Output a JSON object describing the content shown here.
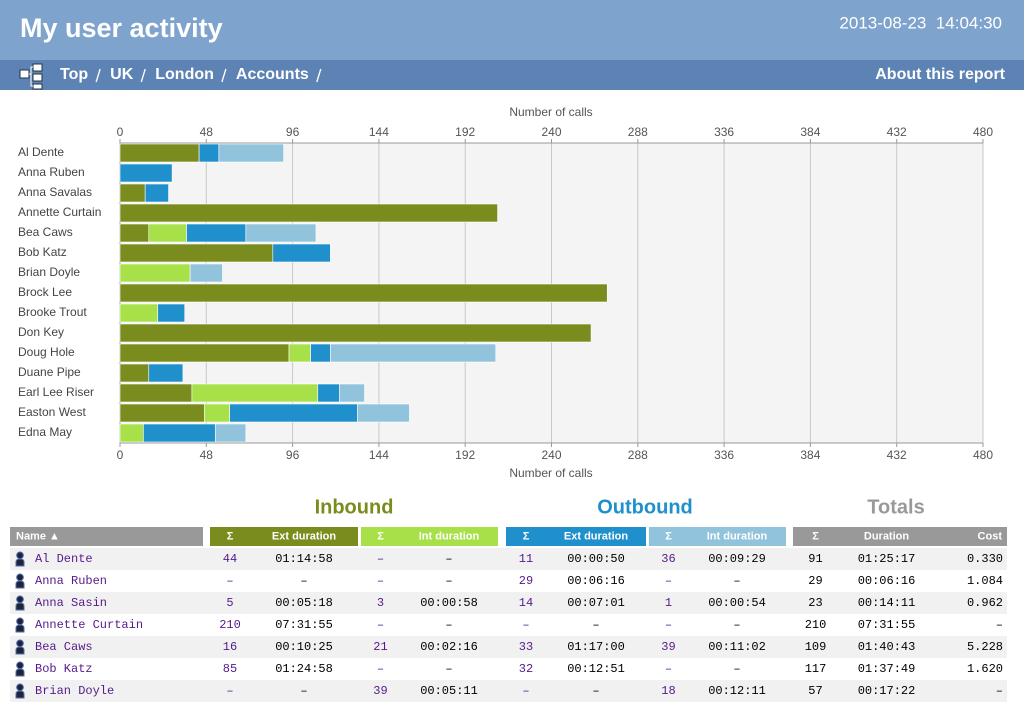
{
  "header": {
    "title": "My user activity",
    "datetime": "2013-08-23  14:04:30"
  },
  "nav": {
    "crumbs": [
      "Top",
      "UK",
      "London",
      "Accounts"
    ],
    "about": "About this report"
  },
  "chart_data": {
    "type": "hbar-stacked",
    "axis_label": "Number of calls",
    "categories": [
      "Al Dente",
      "Anna Ruben",
      "Anna Savalas",
      "Annette Curtain",
      "Bea Caws",
      "Bob Katz",
      "Brian Doyle",
      "Brock Lee",
      "Brooke Trout",
      "Don Key",
      "Doug Hole",
      "Duane Pipe",
      "Earl Lee Riser",
      "Easton West",
      "Edna May"
    ],
    "series": [
      {
        "color": "#7a8c1e",
        "values": [
          44,
          null,
          14,
          210,
          16,
          85,
          null,
          271,
          null,
          262,
          94,
          16,
          40,
          47,
          null
        ]
      },
      {
        "color": "#a8e04a",
        "values": [
          null,
          null,
          null,
          null,
          21,
          null,
          39,
          null,
          21,
          null,
          12,
          null,
          70,
          14,
          13
        ]
      },
      {
        "color": "#2090cc",
        "values": [
          11,
          29,
          13,
          null,
          33,
          32,
          null,
          null,
          15,
          null,
          11,
          19,
          12,
          71,
          40
        ]
      },
      {
        "color": "#92c3dc",
        "values": [
          36,
          null,
          null,
          null,
          39,
          null,
          18,
          null,
          null,
          null,
          92,
          null,
          14,
          29,
          17
        ]
      }
    ],
    "xlim": [
      0,
      480
    ],
    "xticks": [
      0,
      48,
      96,
      144,
      192,
      240,
      288,
      336,
      384,
      432,
      480
    ],
    "grid": true
  },
  "table": {
    "sections": [
      {
        "title": "Inbound",
        "color": "#7a8c1e"
      },
      {
        "title": "Outbound",
        "color": "#2090cc"
      },
      {
        "title": "Totals",
        "color": "#999999"
      }
    ],
    "columns": [
      "Name ▲",
      "Σ",
      "Ext duration",
      "Σ",
      "Int duration",
      "Σ",
      "Ext duration",
      "Σ",
      "Int duration",
      "Σ",
      "Duration",
      "Cost"
    ],
    "rows": [
      [
        "Al Dente",
        "44",
        "01:14:58",
        "–",
        "–",
        "11",
        "00:00:50",
        "36",
        "00:09:29",
        "91",
        "01:25:17",
        "0.330"
      ],
      [
        "Anna Ruben",
        "–",
        "–",
        "–",
        "–",
        "29",
        "00:06:16",
        "–",
        "–",
        "29",
        "00:06:16",
        "1.084"
      ],
      [
        "Anna Sasin",
        "5",
        "00:05:18",
        "3",
        "00:00:58",
        "14",
        "00:07:01",
        "1",
        "00:00:54",
        "23",
        "00:14:11",
        "0.962"
      ],
      [
        "Annette Curtain",
        "210",
        "07:31:55",
        "–",
        "–",
        "–",
        "–",
        "–",
        "–",
        "210",
        "07:31:55",
        "–"
      ],
      [
        "Bea Caws",
        "16",
        "00:10:25",
        "21",
        "00:02:16",
        "33",
        "01:17:00",
        "39",
        "00:11:02",
        "109",
        "01:40:43",
        "5.228"
      ],
      [
        "Bob Katz",
        "85",
        "01:24:58",
        "–",
        "–",
        "32",
        "00:12:51",
        "–",
        "–",
        "117",
        "01:37:49",
        "1.620"
      ],
      [
        "Brian Doyle",
        "–",
        "–",
        "39",
        "00:05:11",
        "–",
        "–",
        "18",
        "00:12:11",
        "57",
        "00:17:22",
        "–"
      ]
    ]
  }
}
